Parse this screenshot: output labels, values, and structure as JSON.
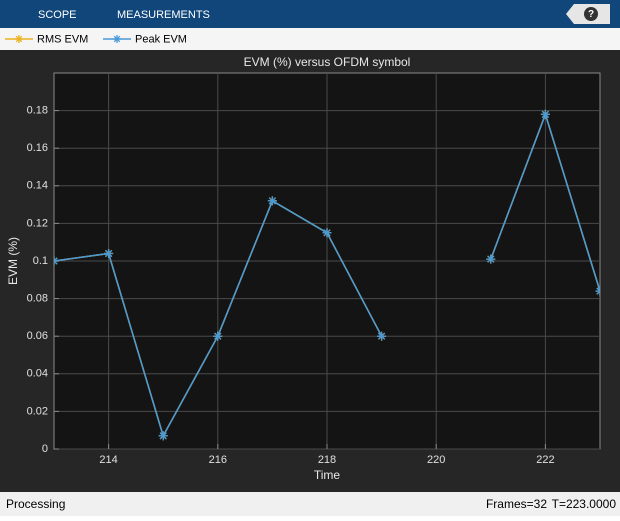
{
  "toolbar": {
    "tabs": [
      "SCOPE",
      "MEASUREMENTS"
    ],
    "help": "?"
  },
  "status": {
    "state": "Processing",
    "frames": "Frames=32",
    "time": "T=223.0000"
  },
  "chart_data": {
    "type": "line",
    "title": "EVM (%) versus OFDM symbol",
    "xlabel": "Time",
    "ylabel": "EVM (%)",
    "x": [
      213,
      214,
      215,
      216,
      217,
      218,
      219,
      220,
      221,
      222,
      223
    ],
    "series": [
      {
        "name": "RMS EVM",
        "color": "#edb120",
        "values": [
          0.1,
          0.104,
          0.007,
          0.06,
          0.132,
          0.115,
          0.06,
          null,
          0.101,
          0.178,
          0.084
        ]
      },
      {
        "name": "Peak EVM",
        "color": "#4a9ad6",
        "values": [
          0.1,
          0.104,
          0.007,
          0.06,
          0.132,
          0.115,
          0.06,
          null,
          0.101,
          0.178,
          0.084
        ]
      }
    ],
    "xlim": [
      213,
      223
    ],
    "xticks": [
      214,
      216,
      218,
      220,
      222
    ],
    "ylim": [
      0,
      0.2
    ],
    "yticks": [
      0,
      0.02,
      0.04,
      0.06,
      0.08,
      0.1,
      0.12,
      0.14,
      0.16,
      0.18
    ],
    "grid": true,
    "marker": "asterisk"
  }
}
